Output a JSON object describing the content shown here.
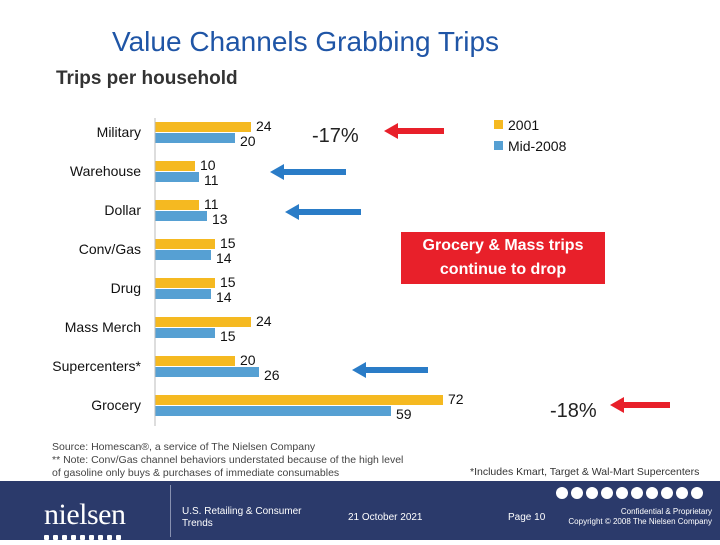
{
  "title": "Value Channels Grabbing Trips",
  "subtitle": "Trips per household",
  "chart_data": {
    "type": "bar",
    "orientation": "horizontal",
    "categories": [
      "Military",
      "Warehouse",
      "Dollar",
      "Conv/Gas",
      "Drug",
      "Mass Merch",
      "Supercenters*",
      "Grocery"
    ],
    "series": [
      {
        "name": "2001",
        "color": "#f5b921",
        "values": [
          24,
          10,
          11,
          15,
          15,
          24,
          20,
          72
        ]
      },
      {
        "name": "Mid-2008",
        "color": "#56a0d3",
        "values": [
          20,
          11,
          13,
          14,
          14,
          15,
          26,
          59
        ]
      }
    ],
    "xlim": [
      0,
      72
    ],
    "annotations": [
      {
        "text": "-17%",
        "category": "Military",
        "color": "#e8202a",
        "arrow": "red"
      },
      {
        "text": "-18%",
        "category": "Grocery",
        "color": "#e8202a",
        "arrow": "red"
      }
    ],
    "growth_arrows": [
      "Warehouse",
      "Dollar",
      "Supercenters*"
    ],
    "legend_position": "top-right"
  },
  "callout": {
    "line1": "Grocery & Mass trips",
    "line2": "continue to drop"
  },
  "footnotes": {
    "source": "Source: Homescan®, a service of The Nielsen Company",
    "note": "** Note:  Conv/Gas channel behaviors understated because of the high level of gasoline only buys & purchases of immediate consumables"
  },
  "supercenter_note": "*Includes Kmart, Target & Wal-Mart Supercenters",
  "footer": {
    "logo": "nielsen",
    "dept": "U.S. Retailing & Consumer Trends",
    "date": "21 October 2021",
    "page": "Page 10",
    "legal1": "Confidential & Proprietary",
    "legal2": "Copyright © 2008 The Nielsen Company"
  },
  "colors": {
    "accent": "#e8202a",
    "arrow_blue": "#2a7cc7",
    "title": "#1f55a6",
    "footer_bg": "#2b3a6b"
  }
}
